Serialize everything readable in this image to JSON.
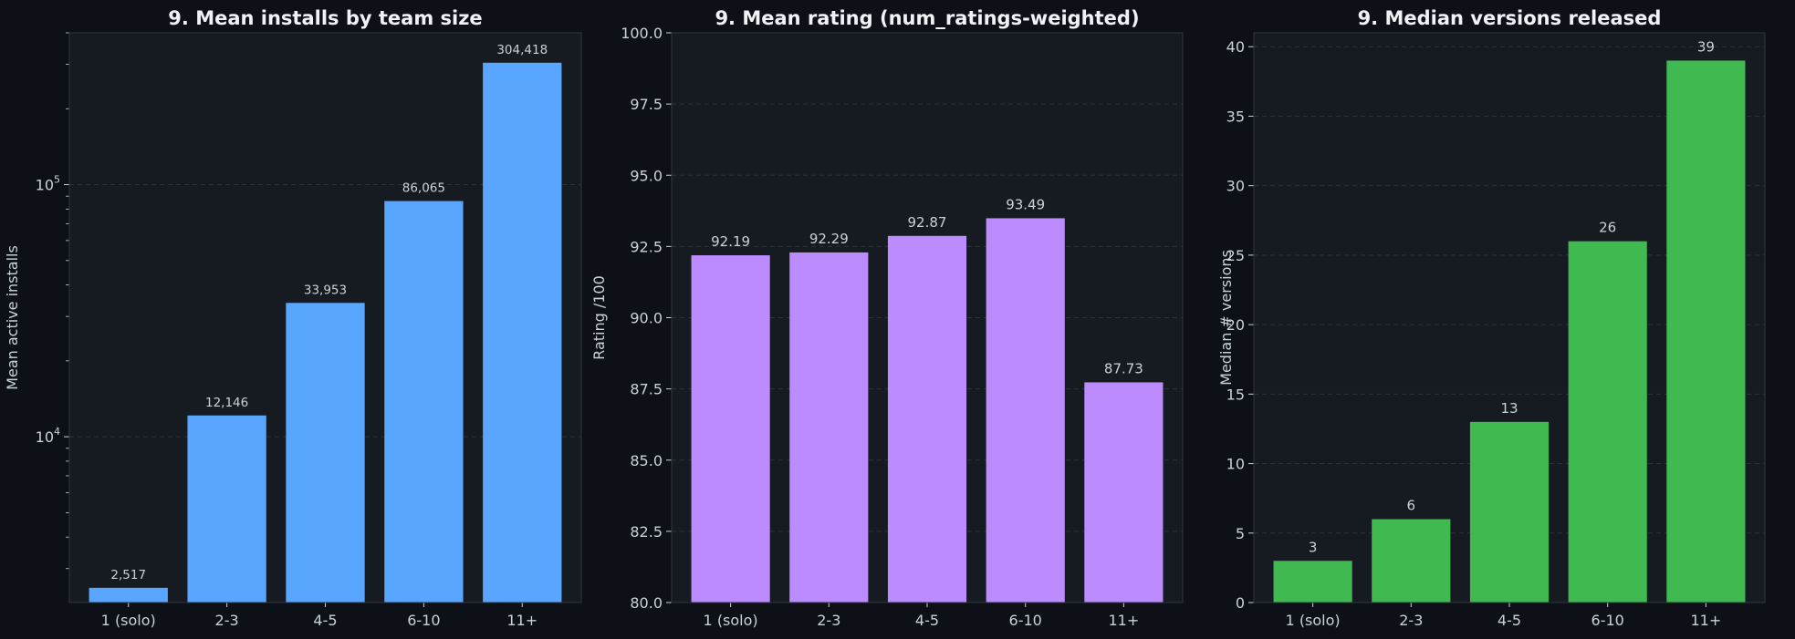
{
  "colors": {
    "background": "#0d1117",
    "panel": "#161b22",
    "spine": "#30363d",
    "grid": "#2d333b",
    "text": "#c9d1d9",
    "title": "#f0f3f6"
  },
  "chart_data": [
    {
      "type": "bar",
      "title": "9. Mean installs by team size",
      "xlabel": "",
      "ylabel": "Mean active installs",
      "yscale": "log",
      "ylim": [
        2200,
        400000
      ],
      "yticks": [
        10000,
        100000
      ],
      "ytick_labels": [
        {
          "base": "10",
          "exp": "4"
        },
        {
          "base": "10",
          "exp": "5"
        }
      ],
      "categories": [
        "1 (solo)",
        "2-3",
        "4-5",
        "6-10",
        "11+"
      ],
      "values": [
        2517,
        12146,
        33953,
        86065,
        304418
      ],
      "value_labels": [
        "2,517",
        "12,146",
        "33,953",
        "86,065",
        "304,418"
      ],
      "color": "#58a6ff",
      "grid": true
    },
    {
      "type": "bar",
      "title": "9. Mean rating (num_ratings-weighted)",
      "xlabel": "",
      "ylabel": "Rating /100",
      "yscale": "linear",
      "ylim": [
        80,
        100
      ],
      "yticks": [
        80,
        82.5,
        85,
        87.5,
        90,
        92.5,
        95,
        97.5,
        100
      ],
      "ytick_labels": [
        "80.0",
        "82.5",
        "85.0",
        "87.5",
        "90.0",
        "92.5",
        "95.0",
        "97.5",
        "100.0"
      ],
      "categories": [
        "1 (solo)",
        "2-3",
        "4-5",
        "6-10",
        "11+"
      ],
      "values": [
        92.19,
        92.29,
        92.87,
        93.49,
        87.73
      ],
      "value_labels": [
        "92.19",
        "92.29",
        "92.87",
        "93.49",
        "87.73"
      ],
      "color": "#bc8cff",
      "grid": true
    },
    {
      "type": "bar",
      "title": "9. Median versions released",
      "xlabel": "",
      "ylabel": "Median # versions",
      "yscale": "linear",
      "ylim": [
        0,
        41
      ],
      "yticks": [
        0,
        5,
        10,
        15,
        20,
        25,
        30,
        35,
        40
      ],
      "ytick_labels": [
        "0",
        "5",
        "10",
        "15",
        "20",
        "25",
        "30",
        "35",
        "40"
      ],
      "categories": [
        "1 (solo)",
        "2-3",
        "4-5",
        "6-10",
        "11+"
      ],
      "values": [
        3,
        6,
        13,
        26,
        39
      ],
      "value_labels": [
        "3",
        "6",
        "13",
        "26",
        "39"
      ],
      "color": "#3fb950",
      "grid": true
    }
  ]
}
